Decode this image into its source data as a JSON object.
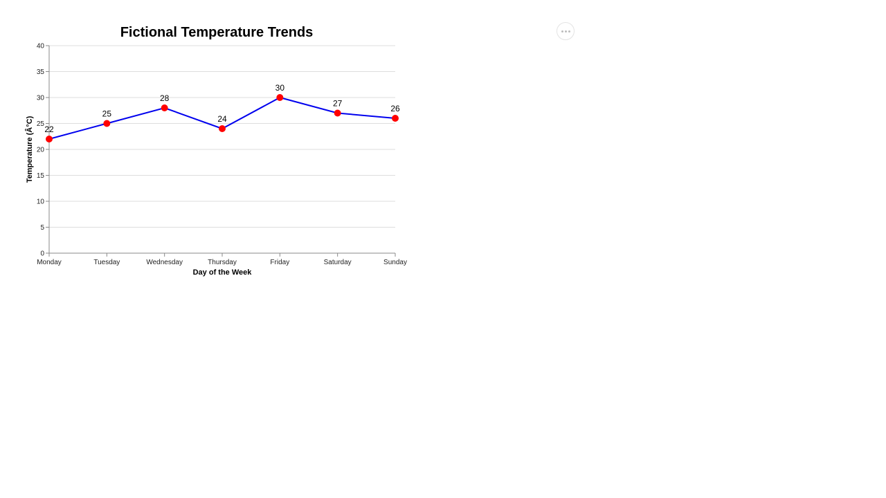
{
  "menu": {
    "icon": "more-horizontal-icon"
  },
  "chart_data": {
    "type": "line",
    "title": "Fictional Temperature Trends",
    "xlabel": "Day of the Week",
    "ylabel": "Temperature (Â°C)",
    "categories": [
      "Monday",
      "Tuesday",
      "Wednesday",
      "Thursday",
      "Friday",
      "Saturday",
      "Sunday"
    ],
    "values": [
      22,
      25,
      28,
      24,
      30,
      27,
      26
    ],
    "ylim": [
      0,
      40
    ],
    "yticks": [
      0,
      5,
      10,
      15,
      20,
      25,
      30,
      35,
      40
    ],
    "grid": true,
    "line_color": "#0000ee",
    "marker_color": "#ff0000",
    "data_labels": true
  }
}
